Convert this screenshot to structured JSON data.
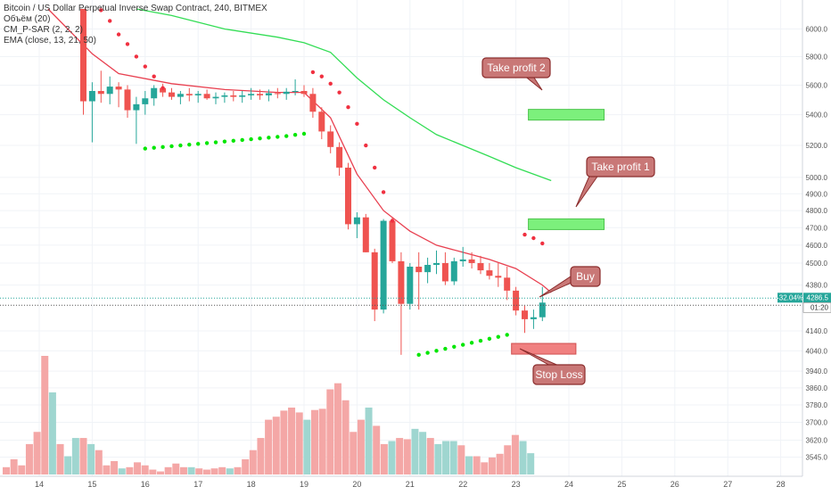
{
  "legend": {
    "symbol_line": "Bitcoin / US Dollar Perpetual Inverse Swap Contract, 240, BITMEX",
    "volume_line": "Объём (20)",
    "psar_line": "CM_P-SAR (2, 2, 2)",
    "ema_line": "EMA (close, 13, 21, 50)"
  },
  "colors": {
    "up": "#26a69a",
    "down": "#ef5350",
    "vol_up": "#9fd6d0",
    "vol_down": "#f4a7a6",
    "psar_below": "#00e600",
    "psar_above": "#f03040",
    "ema_fast": "#e84050",
    "ema_slow": "#33dd55",
    "annotation_fill": "#c97877",
    "annotation_border": "#8b2d2d",
    "tp_box": "#7cf07c",
    "sl_box": "#f08080"
  },
  "chart_data": {
    "type": "candlestick",
    "title": "Bitcoin / US Dollar Perpetual Inverse Swap Contract, 240, BITMEX",
    "y_scale": "log",
    "ylim": [
      3520,
      6150
    ],
    "x_tick_labels": [
      "14",
      "15",
      "16",
      "17",
      "18",
      "19",
      "20",
      "21",
      "22",
      "23",
      "24",
      "25",
      "26",
      "27",
      "28"
    ],
    "y_tick_labels": [
      "6000.0",
      "5800.0",
      "5600.0",
      "5400.0",
      "5200.0",
      "5000.0",
      "4900.0",
      "4800.0",
      "4700.0",
      "4600.0",
      "4500.0",
      "4380.0",
      "4140.0",
      "4040.0",
      "3940.0",
      "3860.0",
      "3780.0",
      "3700.0",
      "3620.0",
      "3545.0"
    ],
    "y_tick_values": [
      6000,
      5800,
      5600,
      5400,
      5200,
      5000,
      4900,
      4800,
      4700,
      4600,
      4500,
      4380,
      4140,
      4040,
      3940,
      3860,
      3780,
      3700,
      3620,
      3545
    ],
    "current_price_label": "4286.5",
    "change_label": "-32.04%",
    "countdown_label": "01:20",
    "candles": [
      {
        "t": "14 20:00",
        "o": 6150,
        "h": 6150,
        "l": 5400,
        "c": 5490
      },
      {
        "t": "15 00:00",
        "o": 5490,
        "h": 5620,
        "l": 5220,
        "c": 5560
      },
      {
        "t": "15 04:00",
        "o": 5560,
        "h": 5700,
        "l": 5480,
        "c": 5540
      },
      {
        "t": "15 08:00",
        "o": 5540,
        "h": 5660,
        "l": 5470,
        "c": 5590
      },
      {
        "t": "15 12:00",
        "o": 5590,
        "h": 5620,
        "l": 5450,
        "c": 5570
      },
      {
        "t": "15 16:00",
        "o": 5570,
        "h": 5600,
        "l": 5380,
        "c": 5430
      },
      {
        "t": "15 20:00",
        "o": 5430,
        "h": 5520,
        "l": 5210,
        "c": 5470
      },
      {
        "t": "16 00:00",
        "o": 5470,
        "h": 5560,
        "l": 5400,
        "c": 5510
      },
      {
        "t": "16 04:00",
        "o": 5510,
        "h": 5600,
        "l": 5460,
        "c": 5580
      },
      {
        "t": "16 08:00",
        "o": 5580,
        "h": 5610,
        "l": 5520,
        "c": 5550
      },
      {
        "t": "16 12:00",
        "o": 5550,
        "h": 5580,
        "l": 5500,
        "c": 5520
      },
      {
        "t": "16 16:00",
        "o": 5520,
        "h": 5560,
        "l": 5470,
        "c": 5540
      },
      {
        "t": "16 20:00",
        "o": 5540,
        "h": 5580,
        "l": 5490,
        "c": 5530
      },
      {
        "t": "17 00:00",
        "o": 5530,
        "h": 5560,
        "l": 5480,
        "c": 5540
      },
      {
        "t": "17 04:00",
        "o": 5540,
        "h": 5570,
        "l": 5500,
        "c": 5510
      },
      {
        "t": "17 08:00",
        "o": 5510,
        "h": 5550,
        "l": 5470,
        "c": 5520
      },
      {
        "t": "17 12:00",
        "o": 5520,
        "h": 5550,
        "l": 5480,
        "c": 5530
      },
      {
        "t": "17 16:00",
        "o": 5530,
        "h": 5560,
        "l": 5490,
        "c": 5520
      },
      {
        "t": "17 20:00",
        "o": 5520,
        "h": 5560,
        "l": 5480,
        "c": 5530
      },
      {
        "t": "18 00:00",
        "o": 5530,
        "h": 5580,
        "l": 5500,
        "c": 5540
      },
      {
        "t": "18 04:00",
        "o": 5540,
        "h": 5570,
        "l": 5500,
        "c": 5530
      },
      {
        "t": "18 08:00",
        "o": 5530,
        "h": 5570,
        "l": 5490,
        "c": 5545
      },
      {
        "t": "18 12:00",
        "o": 5545,
        "h": 5580,
        "l": 5510,
        "c": 5540
      },
      {
        "t": "18 16:00",
        "o": 5540,
        "h": 5580,
        "l": 5500,
        "c": 5555
      },
      {
        "t": "18 20:00",
        "o": 5555,
        "h": 5640,
        "l": 5530,
        "c": 5560
      },
      {
        "t": "19 00:00",
        "o": 5560,
        "h": 5600,
        "l": 5520,
        "c": 5540
      },
      {
        "t": "19 04:00",
        "o": 5540,
        "h": 5580,
        "l": 5380,
        "c": 5420
      },
      {
        "t": "19 08:00",
        "o": 5420,
        "h": 5450,
        "l": 5240,
        "c": 5290
      },
      {
        "t": "19 12:00",
        "o": 5290,
        "h": 5330,
        "l": 5150,
        "c": 5190
      },
      {
        "t": "19 16:00",
        "o": 5190,
        "h": 5220,
        "l": 5010,
        "c": 5060
      },
      {
        "t": "19 20:00",
        "o": 5060,
        "h": 5090,
        "l": 4690,
        "c": 4720
      },
      {
        "t": "20 00:00",
        "o": 4720,
        "h": 4790,
        "l": 4640,
        "c": 4760
      },
      {
        "t": "20 04:00",
        "o": 4760,
        "h": 4780,
        "l": 4560,
        "c": 4560
      },
      {
        "t": "20 08:00",
        "o": 4560,
        "h": 4580,
        "l": 4190,
        "c": 4250
      },
      {
        "t": "20 12:00",
        "o": 4250,
        "h": 4750,
        "l": 4230,
        "c": 4740
      },
      {
        "t": "20 16:00",
        "o": 4740,
        "h": 4760,
        "l": 4500,
        "c": 4510
      },
      {
        "t": "20 20:00",
        "o": 4510,
        "h": 4560,
        "l": 4020,
        "c": 4280
      },
      {
        "t": "21 00:00",
        "o": 4280,
        "h": 4500,
        "l": 4250,
        "c": 4480
      },
      {
        "t": "21 04:00",
        "o": 4480,
        "h": 4560,
        "l": 4250,
        "c": 4450
      },
      {
        "t": "21 08:00",
        "o": 4450,
        "h": 4530,
        "l": 4390,
        "c": 4490
      },
      {
        "t": "21 12:00",
        "o": 4490,
        "h": 4570,
        "l": 4440,
        "c": 4500
      },
      {
        "t": "21 16:00",
        "o": 4500,
        "h": 4560,
        "l": 4380,
        "c": 4400
      },
      {
        "t": "21 20:00",
        "o": 4400,
        "h": 4530,
        "l": 4380,
        "c": 4510
      },
      {
        "t": "22 00:00",
        "o": 4510,
        "h": 4590,
        "l": 4480,
        "c": 4520
      },
      {
        "t": "22 04:00",
        "o": 4520,
        "h": 4560,
        "l": 4470,
        "c": 4500
      },
      {
        "t": "22 08:00",
        "o": 4500,
        "h": 4540,
        "l": 4440,
        "c": 4460
      },
      {
        "t": "22 12:00",
        "o": 4460,
        "h": 4500,
        "l": 4410,
        "c": 4430
      },
      {
        "t": "22 16:00",
        "o": 4430,
        "h": 4500,
        "l": 4370,
        "c": 4420
      },
      {
        "t": "22 20:00",
        "o": 4420,
        "h": 4480,
        "l": 4300,
        "c": 4350
      },
      {
        "t": "23 00:00",
        "o": 4350,
        "h": 4370,
        "l": 4220,
        "c": 4245
      },
      {
        "t": "23 04:00",
        "o": 4245,
        "h": 4270,
        "l": 4130,
        "c": 4200
      },
      {
        "t": "23 08:00",
        "o": 4200,
        "h": 4250,
        "l": 4150,
        "c": 4210
      },
      {
        "t": "23 12:00",
        "o": 4210,
        "h": 4370,
        "l": 4190,
        "c": 4286.5
      }
    ],
    "volumes": [
      {
        "v": 12,
        "up": false
      },
      {
        "v": 25,
        "up": false
      },
      {
        "v": 15,
        "up": false
      },
      {
        "v": 50,
        "up": false
      },
      {
        "v": 70,
        "up": false
      },
      {
        "v": 195,
        "up": false
      },
      {
        "v": 135,
        "up": true
      },
      {
        "v": 50,
        "up": false
      },
      {
        "v": 30,
        "up": true
      },
      {
        "v": 60,
        "up": true
      },
      {
        "v": 60,
        "up": false
      },
      {
        "v": 50,
        "up": true
      },
      {
        "v": 40,
        "up": false
      },
      {
        "v": 15,
        "up": false
      },
      {
        "v": 22,
        "up": false
      },
      {
        "v": 10,
        "up": true
      },
      {
        "v": 12,
        "up": false
      },
      {
        "v": 20,
        "up": false
      },
      {
        "v": 15,
        "up": false
      },
      {
        "v": 8,
        "up": false
      },
      {
        "v": 5,
        "up": false
      },
      {
        "v": 12,
        "up": false
      },
      {
        "v": 18,
        "up": false
      },
      {
        "v": 12,
        "up": false
      },
      {
        "v": 12,
        "up": true
      },
      {
        "v": 10,
        "up": false
      },
      {
        "v": 8,
        "up": false
      },
      {
        "v": 10,
        "up": false
      },
      {
        "v": 12,
        "up": false
      },
      {
        "v": 10,
        "up": true
      },
      {
        "v": 12,
        "up": false
      },
      {
        "v": 25,
        "up": false
      },
      {
        "v": 40,
        "up": false
      },
      {
        "v": 60,
        "up": false
      },
      {
        "v": 90,
        "up": false
      },
      {
        "v": 95,
        "up": false
      },
      {
        "v": 105,
        "up": false
      },
      {
        "v": 110,
        "up": false
      },
      {
        "v": 102,
        "up": false
      },
      {
        "v": 90,
        "up": true
      },
      {
        "v": 106,
        "up": false
      },
      {
        "v": 108,
        "up": false
      },
      {
        "v": 140,
        "up": false
      },
      {
        "v": 150,
        "up": false
      },
      {
        "v": 122,
        "up": false
      },
      {
        "v": 70,
        "up": false
      },
      {
        "v": 90,
        "up": false
      },
      {
        "v": 110,
        "up": true
      },
      {
        "v": 80,
        "up": false
      },
      {
        "v": 50,
        "up": false
      },
      {
        "v": 55,
        "up": true
      },
      {
        "v": 60,
        "up": false
      },
      {
        "v": 58,
        "up": false
      },
      {
        "v": 75,
        "up": true
      },
      {
        "v": 70,
        "up": true
      },
      {
        "v": 60,
        "up": false
      },
      {
        "v": 50,
        "up": true
      },
      {
        "v": 55,
        "up": true
      },
      {
        "v": 55,
        "up": true
      },
      {
        "v": 48,
        "up": false
      },
      {
        "v": 30,
        "up": true
      },
      {
        "v": 30,
        "up": false
      },
      {
        "v": 20,
        "up": false
      },
      {
        "v": 28,
        "up": false
      },
      {
        "v": 34,
        "up": false
      },
      {
        "v": 48,
        "up": false
      },
      {
        "v": 65,
        "up": false
      },
      {
        "v": 55,
        "up": true
      },
      {
        "v": 35,
        "up": true
      }
    ],
    "ema_13": [
      {
        "t": "14 04:00",
        "v": 6150
      },
      {
        "t": "15 00:00",
        "v": 5820
      },
      {
        "t": "15 12:00",
        "v": 5680
      },
      {
        "t": "16 12:00",
        "v": 5610
      },
      {
        "t": "17 12:00",
        "v": 5570
      },
      {
        "t": "18 12:00",
        "v": 5550
      },
      {
        "t": "19 00:00",
        "v": 5550
      },
      {
        "t": "19 12:00",
        "v": 5380
      },
      {
        "t": "20 00:00",
        "v": 5020
      },
      {
        "t": "20 12:00",
        "v": 4800
      },
      {
        "t": "21 00:00",
        "v": 4680
      },
      {
        "t": "21 12:00",
        "v": 4600
      },
      {
        "t": "22 00:00",
        "v": 4560
      },
      {
        "t": "22 12:00",
        "v": 4520
      },
      {
        "t": "23 00:00",
        "v": 4470
      },
      {
        "t": "23 12:00",
        "v": 4380
      },
      {
        "t": "23 16:00",
        "v": 4340
      }
    ],
    "ema_50": [
      {
        "t": "15 20:00",
        "v": 6150
      },
      {
        "t": "16 12:00",
        "v": 6100
      },
      {
        "t": "17 12:00",
        "v": 6000
      },
      {
        "t": "18 12:00",
        "v": 5940
      },
      {
        "t": "19 00:00",
        "v": 5900
      },
      {
        "t": "19 12:00",
        "v": 5830
      },
      {
        "t": "20 00:00",
        "v": 5650
      },
      {
        "t": "20 12:00",
        "v": 5500
      },
      {
        "t": "21 00:00",
        "v": 5380
      },
      {
        "t": "21 12:00",
        "v": 5270
      },
      {
        "t": "22 00:00",
        "v": 5200
      },
      {
        "t": "22 12:00",
        "v": 5130
      },
      {
        "t": "23 00:00",
        "v": 5060
      },
      {
        "t": "23 16:00",
        "v": 4980
      }
    ],
    "psar_above": [
      {
        "t": "15 04:00",
        "v": 6140
      },
      {
        "t": "15 08:00",
        "v": 6060
      },
      {
        "t": "15 12:00",
        "v": 5960
      },
      {
        "t": "15 16:00",
        "v": 5890
      },
      {
        "t": "15 20:00",
        "v": 5800
      },
      {
        "t": "16 00:00",
        "v": 5730
      },
      {
        "t": "16 04:00",
        "v": 5660
      },
      {
        "t": "16 08:00",
        "v": 5580
      },
      {
        "t": "19 04:00",
        "v": 5690
      },
      {
        "t": "19 08:00",
        "v": 5660
      },
      {
        "t": "19 12:00",
        "v": 5610
      },
      {
        "t": "19 16:00",
        "v": 5550
      },
      {
        "t": "19 20:00",
        "v": 5450
      },
      {
        "t": "20 00:00",
        "v": 5340
      },
      {
        "t": "20 04:00",
        "v": 5200
      },
      {
        "t": "20 08:00",
        "v": 5060
      },
      {
        "t": "20 12:00",
        "v": 4910
      },
      {
        "t": "20 16:00",
        "v": 4740
      },
      {
        "t": "23 04:00",
        "v": 4660
      },
      {
        "t": "23 08:00",
        "v": 4640
      },
      {
        "t": "23 12:00",
        "v": 4610
      }
    ],
    "psar_below": [
      {
        "t": "16 00:00",
        "v": 5180
      },
      {
        "t": "16 04:00",
        "v": 5185
      },
      {
        "t": "16 08:00",
        "v": 5190
      },
      {
        "t": "16 12:00",
        "v": 5195
      },
      {
        "t": "16 16:00",
        "v": 5200
      },
      {
        "t": "16 20:00",
        "v": 5205
      },
      {
        "t": "17 00:00",
        "v": 5210
      },
      {
        "t": "17 04:00",
        "v": 5215
      },
      {
        "t": "17 08:00",
        "v": 5220
      },
      {
        "t": "17 12:00",
        "v": 5225
      },
      {
        "t": "17 16:00",
        "v": 5230
      },
      {
        "t": "17 20:00",
        "v": 5235
      },
      {
        "t": "18 00:00",
        "v": 5240
      },
      {
        "t": "18 04:00",
        "v": 5245
      },
      {
        "t": "18 08:00",
        "v": 5250
      },
      {
        "t": "18 12:00",
        "v": 5255
      },
      {
        "t": "18 16:00",
        "v": 5260
      },
      {
        "t": "18 20:00",
        "v": 5268
      },
      {
        "t": "19 00:00",
        "v": 5275
      },
      {
        "t": "21 04:00",
        "v": 4020
      },
      {
        "t": "21 08:00",
        "v": 4030
      },
      {
        "t": "21 12:00",
        "v": 4040
      },
      {
        "t": "21 16:00",
        "v": 4050
      },
      {
        "t": "21 20:00",
        "v": 4060
      },
      {
        "t": "22 00:00",
        "v": 4070
      },
      {
        "t": "22 04:00",
        "v": 4080
      },
      {
        "t": "22 08:00",
        "v": 4090
      },
      {
        "t": "22 12:00",
        "v": 4100
      },
      {
        "t": "22 16:00",
        "v": 4110
      },
      {
        "t": "22 20:00",
        "v": 4120
      }
    ],
    "annotations": [
      {
        "label": "Take profit 2",
        "target": 5400,
        "target_start": "23 00:00",
        "target_end": "24 20:00"
      },
      {
        "label": "Take profit 1",
        "target": 4720,
        "target_start": "23 00:00",
        "target_end": "24 20:00"
      },
      {
        "label": "Buy",
        "target": 4286.5,
        "target_start": "23 16:00",
        "target_end": "23 16:00"
      },
      {
        "label": "Stop Loss",
        "target": 4050,
        "target_start": "22 20:00",
        "target_end": "24 04:00"
      }
    ]
  }
}
